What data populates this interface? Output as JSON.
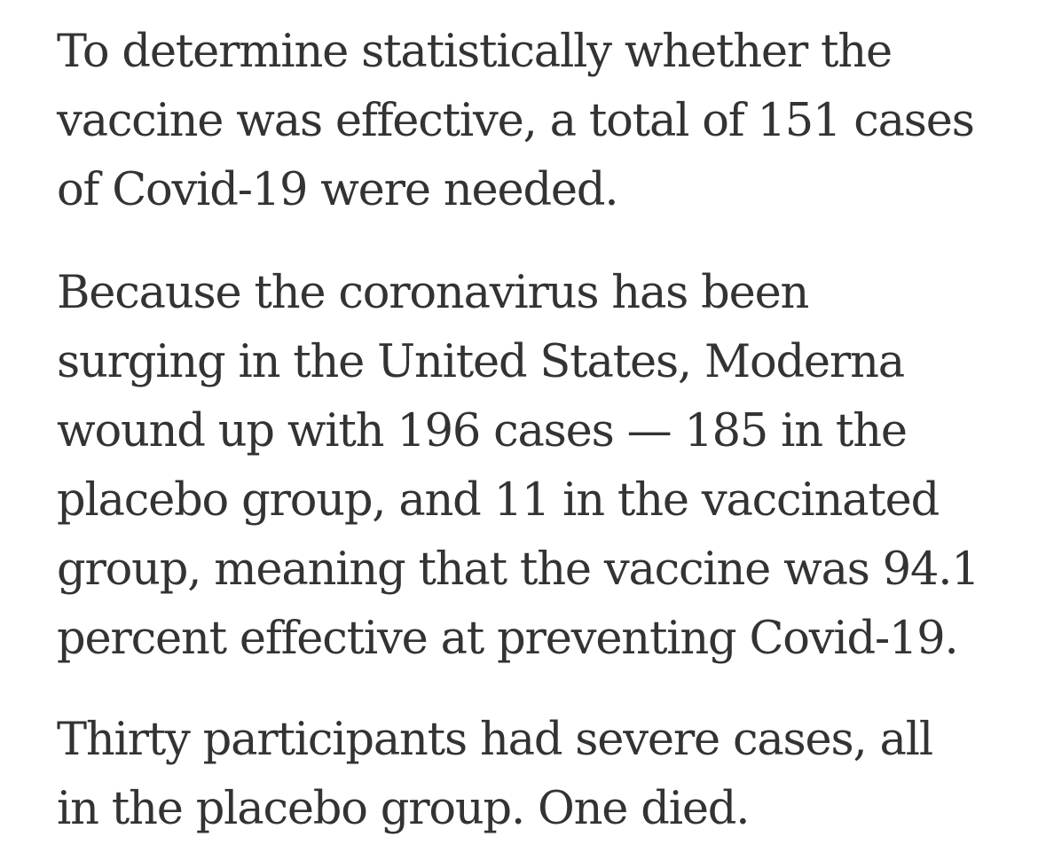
{
  "article": {
    "paragraphs": [
      {
        "lines": [
          "To determine statistically whether the",
          "vaccine was effective, a total of 151 cases",
          "of Covid-19 were needed."
        ]
      },
      {
        "lines": [
          "Because the coronavirus has been",
          "surging in the United States, Moderna",
          "wound up with 196 cases — 185 in the",
          "placebo group, and 11 in the vaccinated",
          "group, meaning that the vaccine was 94.1",
          "percent effective at preventing Covid-19."
        ]
      },
      {
        "lines": [
          "Thirty participants had severe cases, all",
          "in the placebo group. One died."
        ]
      }
    ]
  }
}
